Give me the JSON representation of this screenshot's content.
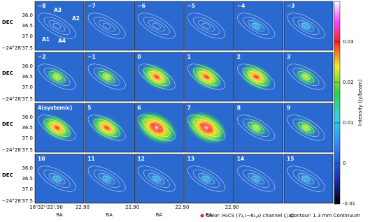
{
  "panels": [
    "−8",
    "−7",
    "−6",
    "−5",
    "−4",
    "−3",
    "−2",
    "−1",
    "0",
    "1",
    "2",
    "3",
    "4(systemic)",
    "5",
    "6",
    "7",
    "8",
    "9",
    "10",
    "11",
    "12",
    "13",
    "14",
    "15"
  ],
  "sources": [
    "A1",
    "A2",
    "A3",
    "A4"
  ],
  "dec_label": "DEC",
  "dec_ticks": [
    "36.0",
    "36.5",
    "37.0"
  ],
  "dec_origin": "−24°28′37.5",
  "ra_label": "RA",
  "ra_first": "16ʰ32ᵐ22ˢ.90",
  "ra_tick": "22.90",
  "colorbar": {
    "label": "Intensity (Jy/beam)",
    "lim": [
      -0.01,
      0.04
    ],
    "ticks": [
      0.03,
      0.02,
      0.01,
      0,
      -0.01
    ]
  },
  "legend": {
    "color": "Color: H₂CS (7₃,₅−6₂,₄) channel map",
    "contour": "Contour: 1.3 mm Continuum"
  }
}
